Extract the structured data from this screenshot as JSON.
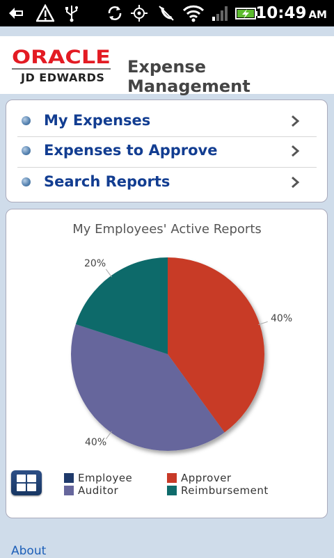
{
  "status_bar": {
    "time": "10:49",
    "ampm": "AM",
    "icons": [
      "usb-debug-icon",
      "warning-icon",
      "usb-icon",
      "sync-icon",
      "gps-icon",
      "no-phone-icon",
      "wifi-icon",
      "signal-icon",
      "battery-charging-icon"
    ]
  },
  "header": {
    "logo_top": "ORACLE",
    "logo_bottom": "JD EDWARDS",
    "title": "Expense Management"
  },
  "menu": {
    "items": [
      {
        "label": "My Expenses"
      },
      {
        "label": "Expenses to Approve"
      },
      {
        "label": "Search Reports"
      }
    ]
  },
  "chart": {
    "title": "My Employees' Active Reports",
    "labels": {
      "approver": "40%",
      "auditor": "40%",
      "reimbursement": "20%"
    }
  },
  "chart_data": {
    "type": "pie",
    "title": "My Employees' Active Reports",
    "slices": [
      {
        "name": "Employee",
        "value": 0,
        "color": "#1f3a6b"
      },
      {
        "name": "Approver",
        "value": 40,
        "color": "#c83a28"
      },
      {
        "name": "Auditor",
        "value": 40,
        "color": "#66669c"
      },
      {
        "name": "Reimbursement",
        "value": 20,
        "color": "#0f6b6b"
      }
    ],
    "legend": [
      "Employee",
      "Approver",
      "Auditor",
      "Reimbursement"
    ],
    "legend_position": "bottom"
  },
  "legend": {
    "employee": "Employee",
    "approver": "Approver",
    "auditor": "Auditor",
    "reimbursement": "Reimbursement"
  },
  "footer": {
    "about": "About"
  },
  "colors": {
    "background": "#cfdcea",
    "menu_text": "#123d91",
    "link": "#1d5fb8"
  }
}
